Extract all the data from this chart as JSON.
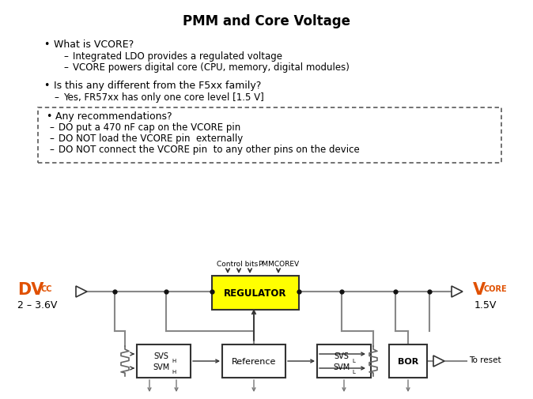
{
  "title": "PMM and Core Voltage",
  "bg_color": "#ffffff",
  "title_color": "#000000",
  "bullet1_header": "What is VCORE?",
  "bullet1_sub1": "Integrated LDO provides a regulated voltage",
  "bullet1_sub2": "VCORE powers digital core (CPU, memory, digital modules)",
  "bullet2_header": "Is this any different from the F5xx family?",
  "bullet2_sub1": "Yes, FR57xx has only one core level [1.5 V]",
  "bullet3_header": "Any recommendations?",
  "bullet3_sub1": "DO put a 470 nF cap on the VCORE pin",
  "bullet3_sub2": "DO NOT load the VCORE pin  externally",
  "bullet3_sub3": "DO NOT connect the VCORE pin  to any other pins on the device",
  "dvcc_range": "2 – 3.6V",
  "vcore_val": "1.5V",
  "regulator_label": "REGULATOR",
  "reference_label": "Reference",
  "bor_label": "BOR",
  "control_bits": "Control bits",
  "pmmcorev": "PMMCOREV",
  "to_reset": "To reset",
  "orange_color": "#E05000",
  "yellow_color": "#FFFF00",
  "black_color": "#000000",
  "line_color": "#888888",
  "edge_color": "#333333"
}
